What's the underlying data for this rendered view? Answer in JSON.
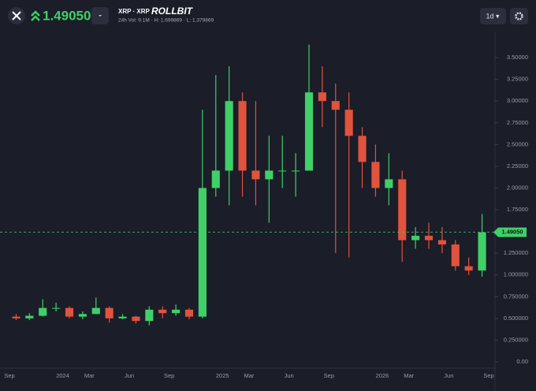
{
  "header": {
    "price": "1.490502",
    "pair": "XRP · XRP",
    "brand": "ROLLBIT",
    "stats": "24h Vol: 9.1M · H: 1.699869 · L: 1.379869",
    "interval": "1d ▾"
  },
  "chart_data": {
    "type": "candlestick",
    "x": [
      "2023-09",
      "2023-10",
      "2023-11",
      "2023-12",
      "2024-01",
      "2024-02",
      "2024-03",
      "2024-04",
      "2024-05",
      "2024-06",
      "2024-07",
      "2024-08",
      "2024-09",
      "2024-10",
      "2024-11",
      "2024-12",
      "2025-01",
      "2025-02",
      "2025-03",
      "2025-04",
      "2025-05",
      "2025-06",
      "2025-07",
      "2025-08",
      "2025-09",
      "2025-10",
      "2025-11",
      "2025-12",
      "2026-01",
      "2026-02",
      "2026-03",
      "2026-04",
      "2026-05",
      "2026-06",
      "2026-07",
      "2026-08"
    ],
    "open": [
      0.52,
      0.5,
      0.53,
      0.62,
      0.62,
      0.52,
      0.55,
      0.62,
      0.5,
      0.52,
      0.47,
      0.6,
      0.56,
      0.6,
      0.52,
      2.0,
      2.2,
      3.0,
      2.2,
      2.1,
      2.2,
      2.2,
      2.2,
      3.1,
      3.0,
      2.9,
      2.6,
      2.3,
      2.0,
      2.1,
      1.4,
      1.45,
      1.4,
      1.35,
      1.1,
      1.05
    ],
    "high": [
      0.55,
      0.56,
      0.72,
      0.68,
      0.64,
      0.58,
      0.74,
      0.64,
      0.55,
      0.53,
      0.64,
      0.64,
      0.66,
      0.62,
      2.9,
      3.3,
      3.4,
      3.1,
      3.0,
      2.6,
      2.6,
      2.4,
      3.65,
      3.4,
      3.2,
      3.1,
      2.7,
      2.5,
      2.4,
      2.2,
      1.55,
      1.6,
      1.55,
      1.4,
      1.2,
      1.7
    ],
    "low": [
      0.48,
      0.48,
      0.52,
      0.58,
      0.5,
      0.49,
      0.55,
      0.45,
      0.49,
      0.44,
      0.42,
      0.5,
      0.53,
      0.49,
      0.5,
      1.9,
      1.8,
      1.9,
      1.8,
      1.6,
      2.0,
      1.9,
      2.2,
      2.7,
      1.25,
      1.2,
      2.0,
      1.9,
      1.8,
      1.15,
      1.3,
      1.3,
      1.25,
      1.05,
      1.0,
      0.98
    ],
    "close": [
      0.5,
      0.53,
      0.62,
      0.62,
      0.52,
      0.55,
      0.62,
      0.5,
      0.52,
      0.47,
      0.6,
      0.56,
      0.6,
      0.52,
      2.0,
      2.2,
      3.0,
      2.2,
      2.1,
      2.2,
      2.2,
      2.2,
      3.1,
      3.0,
      2.9,
      2.6,
      2.3,
      2.0,
      2.1,
      1.4,
      1.45,
      1.4,
      1.35,
      1.1,
      1.05,
      1.490502
    ],
    "up_color": "#3fd068",
    "down_color": "#e0533d",
    "price_line": {
      "value": 1.490502,
      "label": "1.49050"
    },
    "xlim": [
      "2023-09",
      "2026-09"
    ],
    "xticks": [
      {
        "value": "2023-09",
        "label": "Sep"
      },
      {
        "value": "2024-01",
        "label": "2024"
      },
      {
        "value": "2024-03",
        "label": "Mar"
      },
      {
        "value": "2024-06",
        "label": "Jun"
      },
      {
        "value": "2024-09",
        "label": "Sep"
      },
      {
        "value": "2025-01",
        "label": "2025"
      },
      {
        "value": "2025-03",
        "label": "Mar"
      },
      {
        "value": "2025-06",
        "label": "Jun"
      },
      {
        "value": "2025-09",
        "label": "Sep"
      },
      {
        "value": "2026-01",
        "label": "2026"
      },
      {
        "value": "2026-03",
        "label": "Mar"
      },
      {
        "value": "2026-06",
        "label": "Jun"
      },
      {
        "value": "2026-09",
        "label": "Sep"
      }
    ],
    "ylim": [
      0,
      3.8
    ],
    "yticks": [
      {
        "value": 0,
        "label": "0.00"
      },
      {
        "value": 0.25,
        "label": "0.250000"
      },
      {
        "value": 0.5,
        "label": "0.500000"
      },
      {
        "value": 0.75,
        "label": "0.750000"
      },
      {
        "value": 1,
        "label": "1.000000"
      },
      {
        "value": 1.25,
        "label": "1.250000"
      },
      {
        "value": 1.75,
        "label": "1.75000"
      },
      {
        "value": 2,
        "label": "2.00000"
      },
      {
        "value": 2.25,
        "label": "2.25000"
      },
      {
        "value": 2.5,
        "label": "2.50000"
      },
      {
        "value": 2.75,
        "label": "2.75000"
      },
      {
        "value": 3,
        "label": "3.00000"
      },
      {
        "value": 3.25,
        "label": "3.25000"
      },
      {
        "value": 3.5,
        "label": "3.50000"
      }
    ]
  }
}
